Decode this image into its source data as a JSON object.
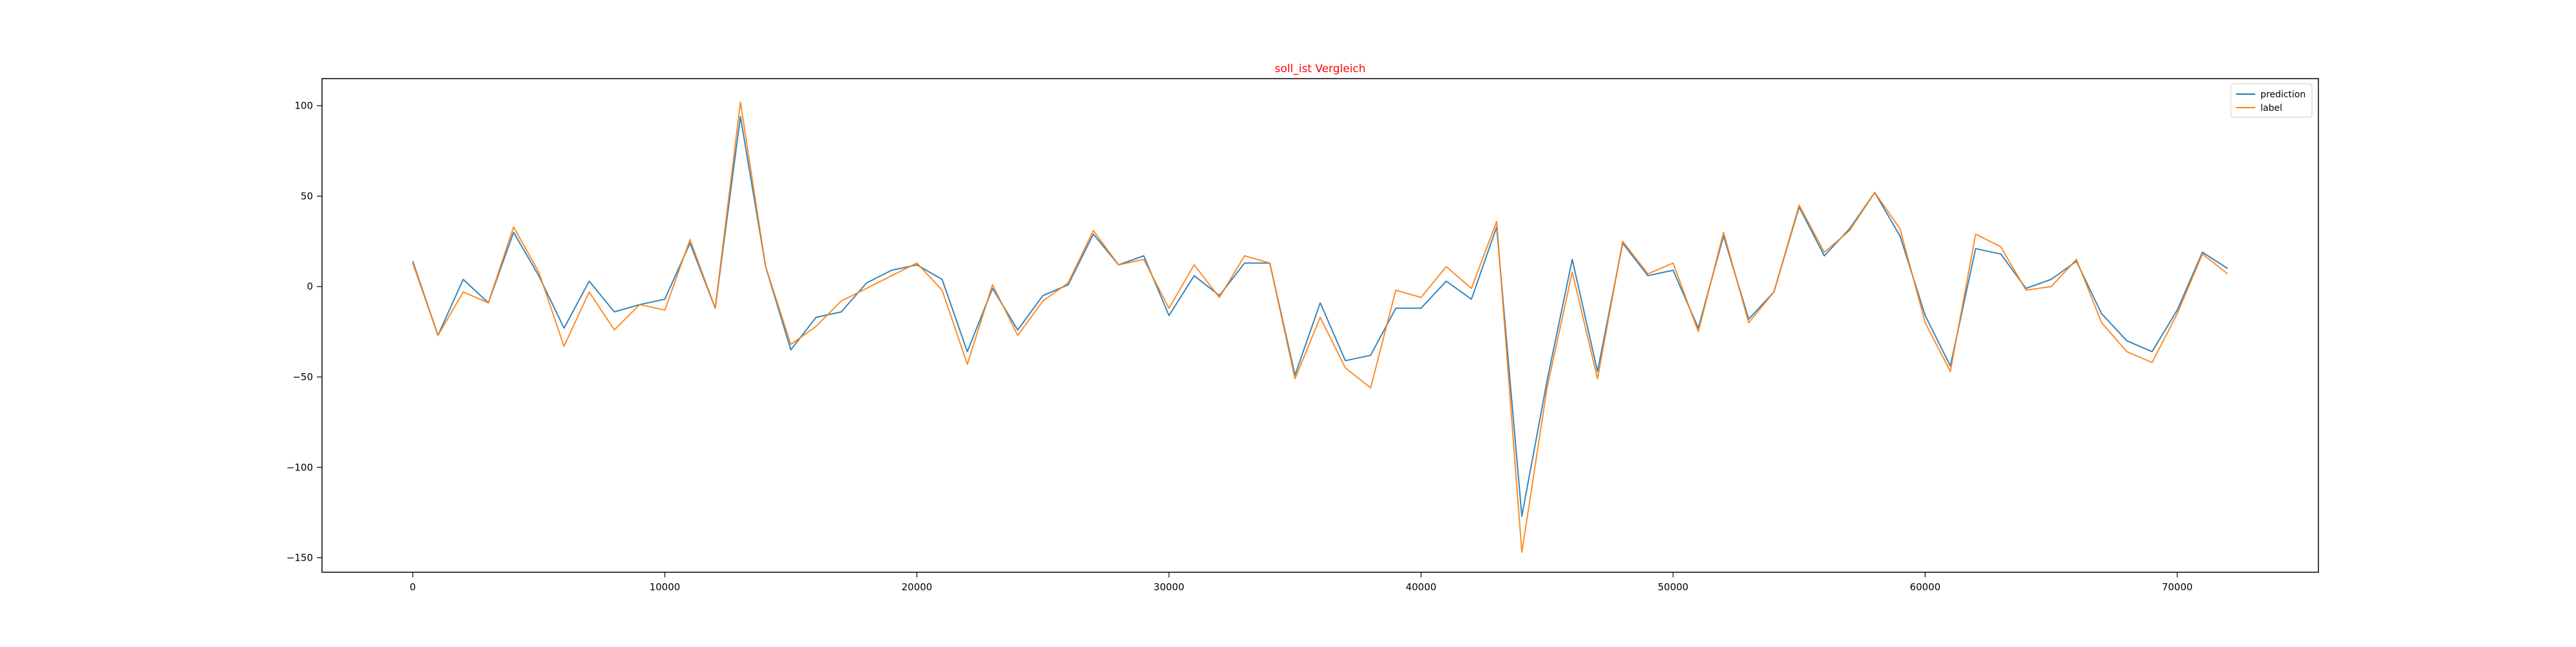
{
  "chart_data": {
    "type": "line",
    "title": "soll_ist Vergleich",
    "title_color": "#ff0000",
    "xlabel": "",
    "ylabel": "",
    "xlim": [
      -3600,
      75600
    ],
    "ylim": [
      -158,
      115
    ],
    "xticks": [
      0,
      10000,
      20000,
      30000,
      40000,
      50000,
      60000,
      70000
    ],
    "xtick_labels": [
      "0",
      "10000",
      "20000",
      "30000",
      "40000",
      "50000",
      "60000",
      "70000"
    ],
    "yticks": [
      100,
      50,
      0,
      -50,
      -100,
      -150
    ],
    "ytick_labels": [
      "100",
      "50",
      "0",
      "−50",
      "−100",
      "−150"
    ],
    "grid": false,
    "legend_position": "upper right",
    "x": [
      0,
      1000,
      2000,
      3000,
      4000,
      5000,
      6000,
      7000,
      8000,
      9000,
      10000,
      11000,
      12000,
      13000,
      14000,
      15000,
      16000,
      17000,
      18000,
      19000,
      20000,
      21000,
      22000,
      23000,
      24000,
      25000,
      26000,
      27000,
      28000,
      29000,
      30000,
      31000,
      32000,
      33000,
      34000,
      35000,
      36000,
      37000,
      38000,
      39000,
      40000,
      41000,
      42000,
      43000,
      44000,
      45000,
      46000,
      47000,
      48000,
      49000,
      50000,
      51000,
      52000,
      53000,
      54000,
      55000,
      56000,
      57000,
      58000,
      59000,
      60000,
      61000,
      62000,
      63000,
      64000,
      65000,
      66000,
      67000,
      68000,
      69000,
      70000,
      71000,
      72000
    ],
    "series": [
      {
        "name": "prediction",
        "color": "#1f77b4",
        "values": [
          14,
          -27,
          4,
          -9,
          30,
          6,
          -23,
          3,
          -14,
          -10,
          -7,
          24,
          -12,
          94,
          11,
          -35,
          -17,
          -14,
          2,
          9,
          12,
          4,
          -36,
          -1,
          -24,
          -5,
          1,
          29,
          12,
          17,
          -16,
          6,
          -5,
          13,
          13,
          -49,
          -9,
          -41,
          -38,
          -12,
          -12,
          3,
          -7,
          33,
          -127,
          -52,
          15,
          -47,
          24,
          6,
          9,
          -23,
          28,
          -18,
          -3,
          44,
          17,
          32,
          52,
          28,
          -16,
          -44,
          21,
          18,
          -1,
          4,
          14,
          -15,
          -30,
          -36,
          -13,
          19,
          10
        ]
      },
      {
        "name": "label",
        "color": "#ff7f0e",
        "values": [
          13,
          -27,
          -3,
          -9,
          33,
          8,
          -33,
          -3,
          -24,
          -10,
          -13,
          26,
          -12,
          102,
          11,
          -32,
          -22,
          -8,
          -1,
          6,
          13,
          -2,
          -43,
          1,
          -27,
          -8,
          2,
          31,
          12,
          15,
          -12,
          12,
          -6,
          17,
          13,
          -51,
          -17,
          -45,
          -56,
          -2,
          -6,
          11,
          -1,
          36,
          -147,
          -56,
          8,
          -51,
          25,
          7,
          13,
          -25,
          30,
          -20,
          -3,
          45,
          19,
          31,
          52,
          32,
          -20,
          -47,
          29,
          22,
          -2,
          0,
          15,
          -20,
          -36,
          -42,
          -15,
          18,
          7
        ]
      }
    ]
  }
}
